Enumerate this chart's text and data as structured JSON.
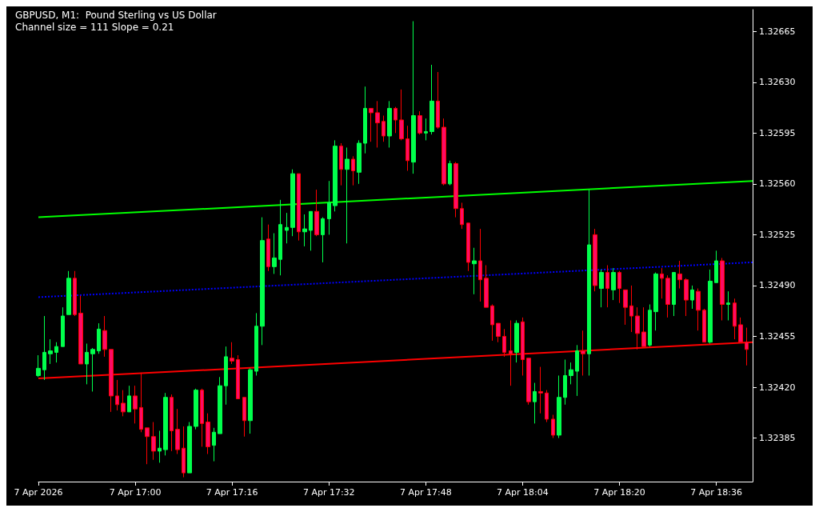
{
  "chart_data": {
    "type": "candlestick",
    "title": "GBPUSD, M1:  Pound Sterling vs US Dollar",
    "subtitle": "Channel size = 111 Slope = 0.21",
    "x": [
      "2026-04-07T16:44",
      "2026-04-07T16:45",
      "2026-04-07T16:46",
      "2026-04-07T16:47",
      "2026-04-07T16:48",
      "2026-04-07T16:49",
      "2026-04-07T16:50",
      "2026-04-07T16:51",
      "2026-04-07T16:52",
      "2026-04-07T16:53",
      "2026-04-07T16:54",
      "2026-04-07T16:55",
      "2026-04-07T16:56",
      "2026-04-07T16:57",
      "2026-04-07T16:58",
      "2026-04-07T16:59",
      "2026-04-07T17:00",
      "2026-04-07T17:01",
      "2026-04-07T17:02",
      "2026-04-07T17:03",
      "2026-04-07T17:04",
      "2026-04-07T17:05",
      "2026-04-07T17:06",
      "2026-04-07T17:07",
      "2026-04-07T17:08",
      "2026-04-07T17:09",
      "2026-04-07T17:10",
      "2026-04-07T17:11",
      "2026-04-07T17:12",
      "2026-04-07T17:13",
      "2026-04-07T17:14",
      "2026-04-07T17:15",
      "2026-04-07T17:16",
      "2026-04-07T17:17",
      "2026-04-07T17:18",
      "2026-04-07T17:19",
      "2026-04-07T17:20",
      "2026-04-07T17:21",
      "2026-04-07T17:22",
      "2026-04-07T17:23",
      "2026-04-07T17:24",
      "2026-04-07T17:25",
      "2026-04-07T17:26",
      "2026-04-07T17:27",
      "2026-04-07T17:28",
      "2026-04-07T17:29",
      "2026-04-07T17:30",
      "2026-04-07T17:31",
      "2026-04-07T17:32",
      "2026-04-07T17:33",
      "2026-04-07T17:34",
      "2026-04-07T17:35",
      "2026-04-07T17:36",
      "2026-04-07T17:37",
      "2026-04-07T17:38",
      "2026-04-07T17:39",
      "2026-04-07T17:40",
      "2026-04-07T17:41",
      "2026-04-07T17:42",
      "2026-04-07T17:43",
      "2026-04-07T17:44",
      "2026-04-07T17:45",
      "2026-04-07T17:46",
      "2026-04-07T17:47",
      "2026-04-07T17:48",
      "2026-04-07T17:49",
      "2026-04-07T17:50",
      "2026-04-07T17:51",
      "2026-04-07T17:52",
      "2026-04-07T17:53",
      "2026-04-07T17:54",
      "2026-04-07T17:55",
      "2026-04-07T17:56",
      "2026-04-07T17:57",
      "2026-04-07T17:58",
      "2026-04-07T17:59",
      "2026-04-07T18:00",
      "2026-04-07T18:01",
      "2026-04-07T18:02",
      "2026-04-07T18:03",
      "2026-04-07T18:04",
      "2026-04-07T18:05",
      "2026-04-07T18:06",
      "2026-04-07T18:07",
      "2026-04-07T18:08",
      "2026-04-07T18:09",
      "2026-04-07T18:10",
      "2026-04-07T18:11",
      "2026-04-07T18:12",
      "2026-04-07T18:13",
      "2026-04-07T18:14",
      "2026-04-07T18:15",
      "2026-04-07T18:16",
      "2026-04-07T18:17",
      "2026-04-07T18:18",
      "2026-04-07T18:19",
      "2026-04-07T18:20",
      "2026-04-07T18:21",
      "2026-04-07T18:22",
      "2026-04-07T18:23",
      "2026-04-07T18:24",
      "2026-04-07T18:25",
      "2026-04-07T18:26",
      "2026-04-07T18:27",
      "2026-04-07T18:28",
      "2026-04-07T18:29",
      "2026-04-07T18:30",
      "2026-04-07T18:31",
      "2026-04-07T18:32",
      "2026-04-07T18:33",
      "2026-04-07T18:34",
      "2026-04-07T18:35",
      "2026-04-07T18:36",
      "2026-04-07T18:37",
      "2026-04-07T18:38",
      "2026-04-07T18:39",
      "2026-04-07T18:40",
      "2026-04-07T18:41"
    ],
    "ohlc": [
      [
        1.32428,
        1.32442,
        1.32427,
        1.32433
      ],
      [
        1.32432,
        1.32469,
        1.32425,
        1.32444
      ],
      [
        1.32443,
        1.32453,
        1.32436,
        1.32445
      ],
      [
        1.32444,
        1.32451,
        1.32437,
        1.32448
      ],
      [
        1.32448,
        1.32475,
        1.32448,
        1.32469
      ],
      [
        1.3247,
        1.325,
        1.3247,
        1.32495
      ],
      [
        1.32495,
        1.325,
        1.32469,
        1.3247
      ],
      [
        1.32471,
        1.32483,
        1.32436,
        1.32436
      ],
      [
        1.32436,
        1.3245,
        1.32422,
        1.32444
      ],
      [
        1.32443,
        1.32447,
        1.32417,
        1.32446
      ],
      [
        1.32445,
        1.32464,
        1.32443,
        1.3246
      ],
      [
        1.32459,
        1.32469,
        1.32441,
        1.32446
      ],
      [
        1.32446,
        1.32446,
        1.32403,
        1.32414
      ],
      [
        1.32414,
        1.32425,
        1.32404,
        1.32408
      ],
      [
        1.32409,
        1.32418,
        1.324,
        1.32403
      ],
      [
        1.32403,
        1.32421,
        1.32403,
        1.32414
      ],
      [
        1.32414,
        1.32421,
        1.32395,
        1.32405
      ],
      [
        1.32406,
        1.3243,
        1.32389,
        1.32391
      ],
      [
        1.32392,
        1.32392,
        1.32367,
        1.32386
      ],
      [
        1.32386,
        1.32396,
        1.3237,
        1.32376
      ],
      [
        1.32376,
        1.3239,
        1.32368,
        1.32378
      ],
      [
        1.32377,
        1.32416,
        1.32373,
        1.32413
      ],
      [
        1.32413,
        1.32415,
        1.32376,
        1.3239
      ],
      [
        1.32391,
        1.32405,
        1.32374,
        1.32377
      ],
      [
        1.32378,
        1.32393,
        1.32358,
        1.32361
      ],
      [
        1.32361,
        1.32396,
        1.32361,
        1.32393
      ],
      [
        1.32393,
        1.32419,
        1.32391,
        1.32418
      ],
      [
        1.32418,
        1.32419,
        1.32379,
        1.32395
      ],
      [
        1.32396,
        1.32402,
        1.32374,
        1.32379
      ],
      [
        1.3238,
        1.32392,
        1.32369,
        1.32389
      ],
      [
        1.32388,
        1.32427,
        1.32388,
        1.32421
      ],
      [
        1.32421,
        1.32448,
        1.32408,
        1.32441
      ],
      [
        1.3244,
        1.32451,
        1.32436,
        1.32438
      ],
      [
        1.32439,
        1.32442,
        1.32412,
        1.32412
      ],
      [
        1.32413,
        1.32413,
        1.32386,
        1.32397
      ],
      [
        1.32397,
        1.32433,
        1.32388,
        1.32432
      ],
      [
        1.32431,
        1.32471,
        1.32428,
        1.32462
      ],
      [
        1.32462,
        1.32537,
        1.32449,
        1.32521
      ],
      [
        1.32522,
        1.32532,
        1.325,
        1.32503
      ],
      [
        1.32503,
        1.32526,
        1.32498,
        1.32509
      ],
      [
        1.32508,
        1.32549,
        1.32497,
        1.32532
      ],
      [
        1.32528,
        1.3254,
        1.32519,
        1.3253
      ],
      [
        1.3253,
        1.3257,
        1.32524,
        1.32567
      ],
      [
        1.32567,
        1.32567,
        1.32521,
        1.32527
      ],
      [
        1.32527,
        1.32539,
        1.32517,
        1.32529
      ],
      [
        1.32528,
        1.32541,
        1.32514,
        1.32541
      ],
      [
        1.32541,
        1.32556,
        1.32524,
        1.32525
      ],
      [
        1.32525,
        1.32537,
        1.32506,
        1.32536
      ],
      [
        1.32536,
        1.32562,
        1.32525,
        1.32547
      ],
      [
        1.32545,
        1.3259,
        1.32541,
        1.32586
      ],
      [
        1.32586,
        1.32588,
        1.32559,
        1.3257
      ],
      [
        1.3257,
        1.32585,
        1.32519,
        1.32577
      ],
      [
        1.32577,
        1.32579,
        1.32559,
        1.32569
      ],
      [
        1.32568,
        1.3259,
        1.3256,
        1.32588
      ],
      [
        1.32588,
        1.32627,
        1.32581,
        1.32612
      ],
      [
        1.32612,
        1.32612,
        1.32589,
        1.32609
      ],
      [
        1.32609,
        1.32617,
        1.32585,
        1.32602
      ],
      [
        1.32603,
        1.32607,
        1.32589,
        1.32593
      ],
      [
        1.32593,
        1.32617,
        1.32585,
        1.32612
      ],
      [
        1.32612,
        1.32613,
        1.32595,
        1.32604
      ],
      [
        1.32604,
        1.32625,
        1.3259,
        1.32591
      ],
      [
        1.32591,
        1.326,
        1.32569,
        1.32576
      ],
      [
        1.32575,
        1.32672,
        1.32567,
        1.32607
      ],
      [
        1.32607,
        1.3261,
        1.32594,
        1.32595
      ],
      [
        1.32595,
        1.32605,
        1.3259,
        1.32596
      ],
      [
        1.32596,
        1.32642,
        1.32594,
        1.32617
      ],
      [
        1.32617,
        1.32637,
        1.32598,
        1.32599
      ],
      [
        1.32599,
        1.32605,
        1.32559,
        1.3256
      ],
      [
        1.3256,
        1.32576,
        1.32559,
        1.32574
      ],
      [
        1.32574,
        1.32575,
        1.32537,
        1.32543
      ],
      [
        1.32543,
        1.32547,
        1.32529,
        1.32532
      ],
      [
        1.32533,
        1.32533,
        1.325,
        1.32506
      ],
      [
        1.32505,
        1.32516,
        1.32484,
        1.32507
      ],
      [
        1.32507,
        1.32529,
        1.32479,
        1.32494
      ],
      [
        1.32495,
        1.32504,
        1.32475,
        1.32475
      ],
      [
        1.32476,
        1.32477,
        1.32452,
        1.32463
      ],
      [
        1.32464,
        1.32464,
        1.32451,
        1.32455
      ],
      [
        1.32455,
        1.3246,
        1.32441,
        1.32444
      ],
      [
        1.32445,
        1.32466,
        1.32421,
        1.32443
      ],
      [
        1.32444,
        1.32466,
        1.32437,
        1.32464
      ],
      [
        1.32465,
        1.32468,
        1.32428,
        1.32439
      ],
      [
        1.3244,
        1.3244,
        1.32408,
        1.3241
      ],
      [
        1.3241,
        1.32423,
        1.32395,
        1.32417
      ],
      [
        1.32417,
        1.32434,
        1.32402,
        1.32416
      ],
      [
        1.32416,
        1.32418,
        1.32396,
        1.32398
      ],
      [
        1.32398,
        1.32401,
        1.32385,
        1.32387
      ],
      [
        1.32387,
        1.32428,
        1.32385,
        1.32413
      ],
      [
        1.32413,
        1.32439,
        1.32408,
        1.32428
      ],
      [
        1.32428,
        1.32437,
        1.32422,
        1.32432
      ],
      [
        1.32431,
        1.32449,
        1.32414,
        1.32445
      ],
      [
        1.32445,
        1.32459,
        1.32428,
        1.32443
      ],
      [
        1.32443,
        1.32556,
        1.32428,
        1.32518
      ],
      [
        1.32525,
        1.32529,
        1.32486,
        1.3249
      ],
      [
        1.32488,
        1.32501,
        1.32475,
        1.32499
      ],
      [
        1.32499,
        1.32504,
        1.32475,
        1.32488
      ],
      [
        1.32487,
        1.32502,
        1.3248,
        1.32499
      ],
      [
        1.32499,
        1.325,
        1.32478,
        1.32488
      ],
      [
        1.32487,
        1.32487,
        1.32463,
        1.32475
      ],
      [
        1.32476,
        1.3249,
        1.32458,
        1.32469
      ],
      [
        1.32469,
        1.32475,
        1.32446,
        1.32457
      ],
      [
        1.32458,
        1.32475,
        1.32448,
        1.32448
      ],
      [
        1.32449,
        1.32477,
        1.32448,
        1.32473
      ],
      [
        1.32472,
        1.32499,
        1.32459,
        1.32498
      ],
      [
        1.32498,
        1.32502,
        1.32481,
        1.32495
      ],
      [
        1.32495,
        1.32497,
        1.32468,
        1.32477
      ],
      [
        1.32477,
        1.32499,
        1.32469,
        1.32499
      ],
      [
        1.32498,
        1.32507,
        1.32488,
        1.32494
      ],
      [
        1.32494,
        1.32495,
        1.32469,
        1.3248
      ],
      [
        1.3248,
        1.3249,
        1.32474,
        1.32487
      ],
      [
        1.32486,
        1.32488,
        1.32459,
        1.32473
      ],
      [
        1.32473,
        1.32474,
        1.32451,
        1.32451
      ],
      [
        1.32451,
        1.32501,
        1.3245,
        1.32493
      ],
      [
        1.32492,
        1.32514,
        1.32492,
        1.32507
      ],
      [
        1.32507,
        1.32509,
        1.32466,
        1.32477
      ],
      [
        1.32477,
        1.32486,
        1.32466,
        1.32478
      ],
      [
        1.32478,
        1.32481,
        1.32453,
        1.32462
      ],
      [
        1.32463,
        1.32468,
        1.32451,
        1.32451
      ],
      [
        1.32451,
        1.32461,
        1.32435,
        1.32446
      ]
    ],
    "series": [
      {
        "type": "line",
        "color": "#00ff00",
        "line_style": "solid",
        "x": [
          "2026-04-07T16:44",
          "2026-04-07T18:42"
        ],
        "values": [
          1.32537,
          1.32562
        ]
      },
      {
        "type": "line",
        "color": "#0000ff",
        "line_style": "dotted",
        "x": [
          "2026-04-07T16:44",
          "2026-04-07T18:42"
        ],
        "values": [
          1.32482,
          1.32506
        ]
      },
      {
        "type": "line",
        "color": "#ff0000",
        "line_style": "solid",
        "x": [
          "2026-04-07T16:44",
          "2026-04-07T18:42"
        ],
        "values": [
          1.32426,
          1.32451
        ]
      }
    ],
    "xlim": [
      "2026-04-07T16:44",
      "2026-04-07T18:42"
    ],
    "xticks": [
      {
        "value": "2026-04-07T16:44",
        "label": "7 Apr 2026"
      },
      {
        "value": "2026-04-07T17:00",
        "label": "7 Apr 17:00"
      },
      {
        "value": "2026-04-07T17:16",
        "label": "7 Apr 17:16"
      },
      {
        "value": "2026-04-07T17:32",
        "label": "7 Apr 17:32"
      },
      {
        "value": "2026-04-07T17:48",
        "label": "7 Apr 17:48"
      },
      {
        "value": "2026-04-07T18:04",
        "label": "7 Apr 18:04"
      },
      {
        "value": "2026-04-07T18:20",
        "label": "7 Apr 18:20"
      },
      {
        "value": "2026-04-07T18:36",
        "label": "7 Apr 18:36"
      }
    ],
    "ylim": [
      1.32355,
      1.3268
    ],
    "yticks": [
      1.32385,
      {
        "value": 1.3242,
        "label": "1.32420"
      },
      1.32455,
      {
        "value": 1.3249,
        "label": "1.32490"
      },
      1.32525,
      {
        "value": 1.3256,
        "label": "1.32560"
      },
      1.32595,
      {
        "value": 1.3263,
        "label": "1.32630"
      },
      1.32665
    ],
    "grid": false
  }
}
